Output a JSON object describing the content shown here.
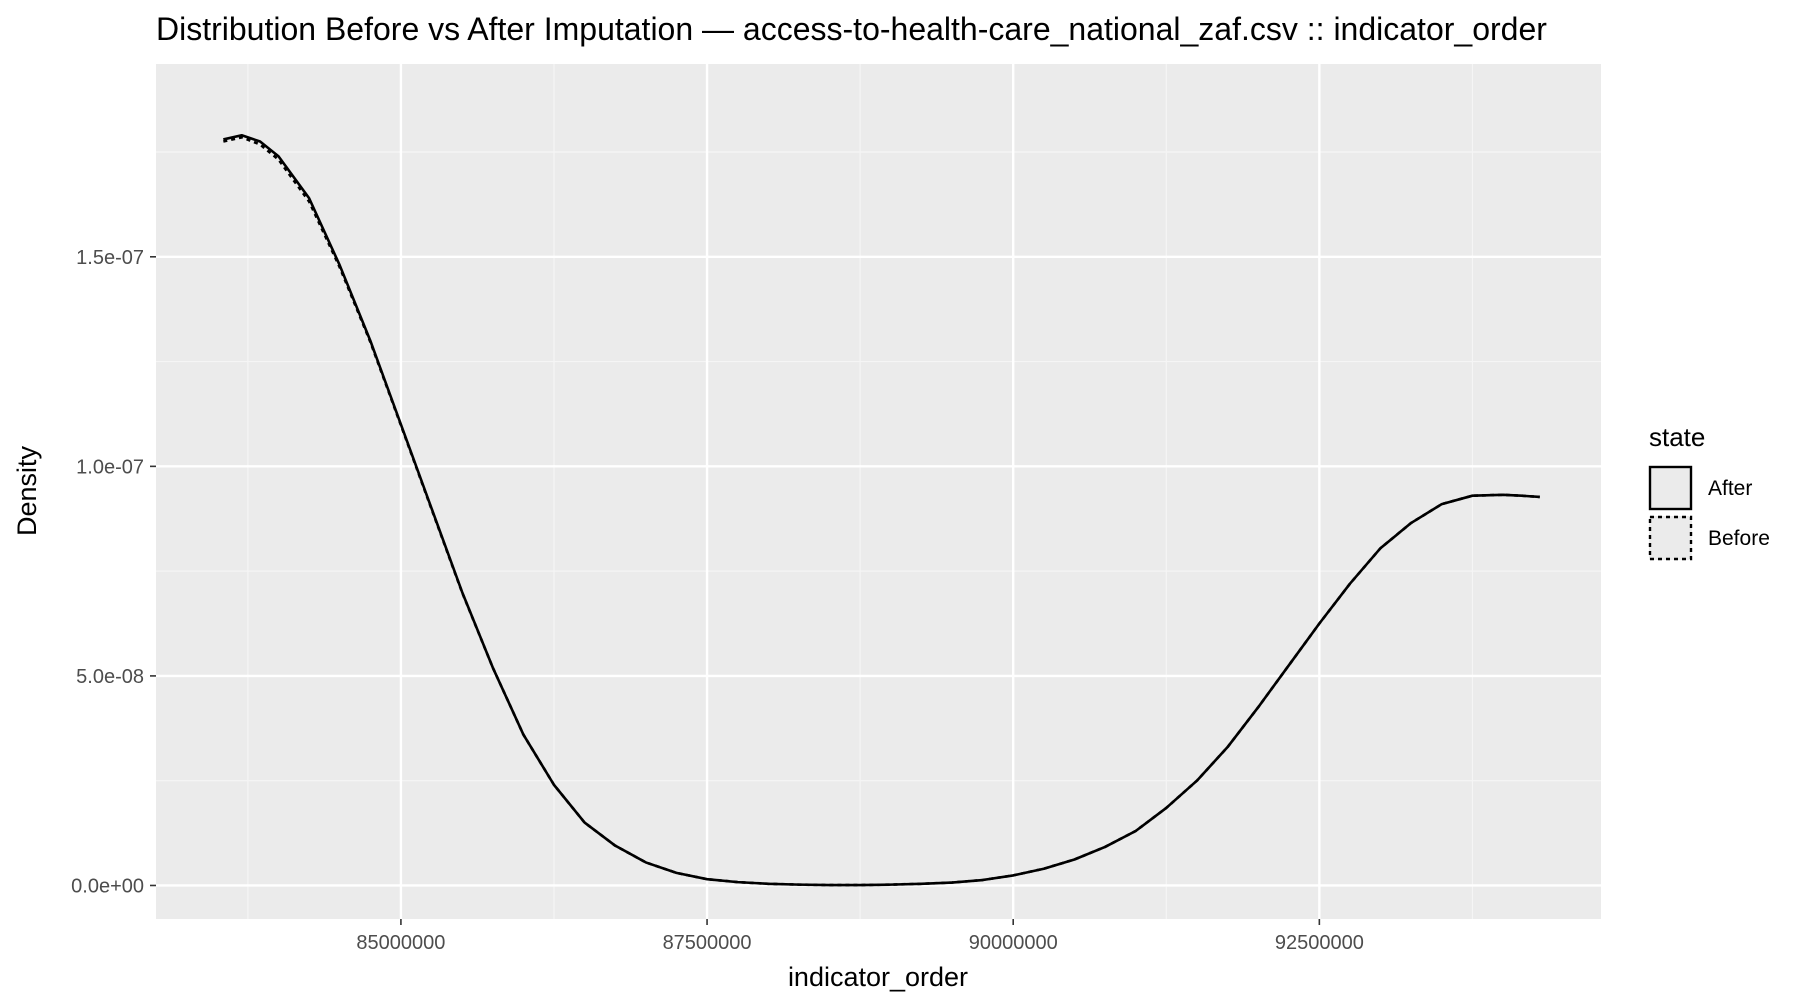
{
  "chart_data": {
    "type": "line",
    "title": "Distribution Before vs After Imputation — access-to-health-care_national_zaf.csv :: indicator_order",
    "xlabel": "indicator_order",
    "ylabel": "Density",
    "xlim": [
      83000000,
      94800000
    ],
    "ylim": [
      -8e-09,
      1.96e-07
    ],
    "x_ticks": [
      85000000,
      87500000,
      90000000,
      92500000
    ],
    "x_tick_labels": [
      "85000000",
      "87500000",
      "90000000",
      "92500000"
    ],
    "y_ticks": [
      0,
      5e-08,
      1e-07,
      1.5e-07
    ],
    "y_tick_labels": [
      "0.0e+00",
      "5.0e-08",
      "1.0e-07",
      "1.5e-07"
    ],
    "grid": true,
    "legend": {
      "title": "state",
      "placement": "right"
    },
    "series": [
      {
        "name": "After",
        "linetype": "solid",
        "color": "#000000",
        "x": [
          83550000,
          83700000,
          83850000,
          84000000,
          84250000,
          84500000,
          84750000,
          85000000,
          85250000,
          85500000,
          85750000,
          86000000,
          86250000,
          86500000,
          86750000,
          87000000,
          87250000,
          87500000,
          87750000,
          88000000,
          88250000,
          88500000,
          88750000,
          89000000,
          89250000,
          89500000,
          89750000,
          90000000,
          90250000,
          90500000,
          90750000,
          91000000,
          91250000,
          91500000,
          91750000,
          92000000,
          92250000,
          92500000,
          92750000,
          93000000,
          93250000,
          93500000,
          93750000,
          94000000,
          94150000,
          94300000
        ],
        "y": [
          1.78e-07,
          1.79e-07,
          1.775e-07,
          1.74e-07,
          1.64e-07,
          1.48e-07,
          1.3e-07,
          1.1e-07,
          9e-08,
          7e-08,
          5.2e-08,
          3.6e-08,
          2.4e-08,
          1.5e-08,
          9.5e-09,
          5.5e-09,
          3e-09,
          1.5e-09,
          8e-10,
          4e-10,
          2e-10,
          1e-10,
          1e-10,
          2e-10,
          4e-10,
          7e-10,
          1.3e-09,
          2.4e-09,
          4e-09,
          6.2e-09,
          9.2e-09,
          1.3e-08,
          1.85e-08,
          2.5e-08,
          3.3e-08,
          4.25e-08,
          5.25e-08,
          6.25e-08,
          7.2e-08,
          8.05e-08,
          8.65e-08,
          9.1e-08,
          9.3e-08,
          9.32e-08,
          9.3e-08,
          9.27e-08
        ]
      },
      {
        "name": "Before",
        "linetype": "dotted",
        "color": "#000000",
        "x": [
          83550000,
          83700000,
          83850000,
          84000000,
          84250000,
          84500000,
          84750000,
          85000000,
          85250000,
          85500000,
          85750000,
          86000000,
          86250000,
          86500000,
          86750000,
          87000000,
          87250000,
          87500000,
          87750000,
          88000000,
          88250000,
          88500000,
          88750000,
          89000000,
          89250000,
          89500000,
          89750000,
          90000000,
          90250000,
          90500000,
          90750000,
          91000000,
          91250000,
          91500000,
          91750000,
          92000000,
          92250000,
          92500000,
          92750000,
          93000000,
          93250000,
          93500000,
          93750000,
          94000000,
          94150000,
          94300000
        ],
        "y": [
          1.775e-07,
          1.785e-07,
          1.768e-07,
          1.732e-07,
          1.632e-07,
          1.475e-07,
          1.297e-07,
          1.098e-07,
          8.98e-08,
          6.99e-08,
          5.2e-08,
          3.6e-08,
          2.4e-08,
          1.5e-08,
          9.5e-09,
          5.5e-09,
          3e-09,
          1.5e-09,
          8e-10,
          4e-10,
          2e-10,
          1e-10,
          1e-10,
          2e-10,
          4e-10,
          7e-10,
          1.3e-09,
          2.4e-09,
          4e-09,
          6.2e-09,
          9.2e-09,
          1.3e-08,
          1.85e-08,
          2.5e-08,
          3.3e-08,
          4.25e-08,
          5.25e-08,
          6.25e-08,
          7.2e-08,
          8.05e-08,
          8.65e-08,
          9.1e-08,
          9.3e-08,
          9.32e-08,
          9.3e-08,
          9.27e-08
        ]
      }
    ]
  },
  "colors": {
    "panel_background": "#ebebeb",
    "grid_major": "#ffffff",
    "grid_minor": "#f5f5f5",
    "line": "#000000",
    "tick_text": "#4d4d4d"
  }
}
